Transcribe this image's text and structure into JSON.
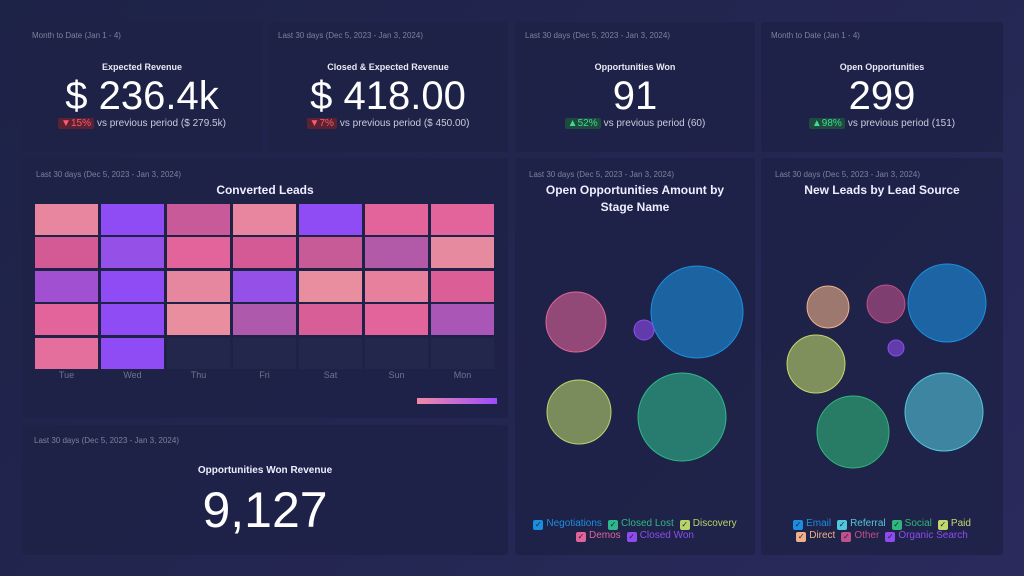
{
  "kpis": [
    {
      "period": "Month to Date (Jan 1 - 4)",
      "title": "Expected Revenue",
      "value": "$ 236.4k",
      "change": "▼15%",
      "direction": "down",
      "comparison": "vs previous period ($ 279.5k)"
    },
    {
      "period": "Last 30 days (Dec 5, 2023 - Jan 3, 2024)",
      "title": "Closed & Expected Revenue",
      "value": "$ 418.00",
      "change": "▼7%",
      "direction": "down",
      "comparison": "vs previous period ($ 450.00)"
    },
    {
      "period": "Last 30 days (Dec 5, 2023 - Jan 3, 2024)",
      "title": "Opportunities Won",
      "value": "91",
      "change": "▲52%",
      "direction": "up",
      "comparison": "vs previous period (60)"
    },
    {
      "period": "Month to Date (Jan 1 - 4)",
      "title": "Open Opportunities",
      "value": "299",
      "change": "▲98%",
      "direction": "up",
      "comparison": "vs previous period (151)"
    }
  ],
  "converted_leads": {
    "period": "Last 30 days (Dec 5, 2023 - Jan 3, 2024)",
    "title": "Converted Leads",
    "days": [
      "Tue",
      "Wed",
      "Thu",
      "Fri",
      "Sat",
      "Sun",
      "Mon"
    ],
    "scale_colors": [
      "#f08aa6",
      "#9b4dff"
    ],
    "cells": [
      [
        "#e8859f",
        "#8f4cf5",
        "#c95a99",
        "#e8859f",
        "#8f4cf5",
        "#e3649a",
        "#e3649a"
      ],
      [
        "#d45a95",
        "#9550e8",
        "#e3649a",
        "#d45a95",
        "#c65b97",
        "#b25aa8",
        "#e68a9f"
      ],
      [
        "#a050d0",
        "#8f4cf5",
        "#e6879f",
        "#9550e8",
        "#e88e9e",
        "#e6809c",
        "#dc5e97"
      ],
      [
        "#e3649a",
        "#8f4cf5",
        "#e88e9e",
        "#ae59ac",
        "#d85e98",
        "#e3649a",
        "#a956b6"
      ],
      [
        "#e56f9c",
        "#8f4cf5",
        null,
        null,
        null,
        null,
        null
      ]
    ]
  },
  "won_revenue": {
    "period": "Last 30 days (Dec 5, 2023 - Jan 3, 2024)",
    "title": "Opportunities Won Revenue",
    "value": "9,127"
  },
  "stage_chart": {
    "period": "Last 30 days (Dec 5, 2023 - Jan 3, 2024)",
    "title_line1": "Open Opportunities Amount by",
    "title_line2": "Stage Name",
    "series": [
      {
        "name": "Negotiations",
        "color": "#1a8fe0"
      },
      {
        "name": "Closed Lost",
        "color": "#2eb88a"
      },
      {
        "name": "Discovery",
        "color": "#b9d36a"
      },
      {
        "name": "Demos",
        "color": "#e0649a"
      },
      {
        "name": "Closed Won",
        "color": "#8e4cf0"
      }
    ]
  },
  "source_chart": {
    "period": "Last 30 days (Dec 5, 2023 - Jan 3, 2024)",
    "title": "New Leads by Lead Source",
    "series": [
      {
        "name": "Email",
        "color": "#1a8fe0"
      },
      {
        "name": "Referral",
        "color": "#52c6dc"
      },
      {
        "name": "Social",
        "color": "#2eb87a"
      },
      {
        "name": "Paid",
        "color": "#c2d86a"
      },
      {
        "name": "Direct",
        "color": "#f0b08a"
      },
      {
        "name": "Other",
        "color": "#c0508a"
      },
      {
        "name": "Organic Search",
        "color": "#8e4cf0"
      }
    ]
  }
}
